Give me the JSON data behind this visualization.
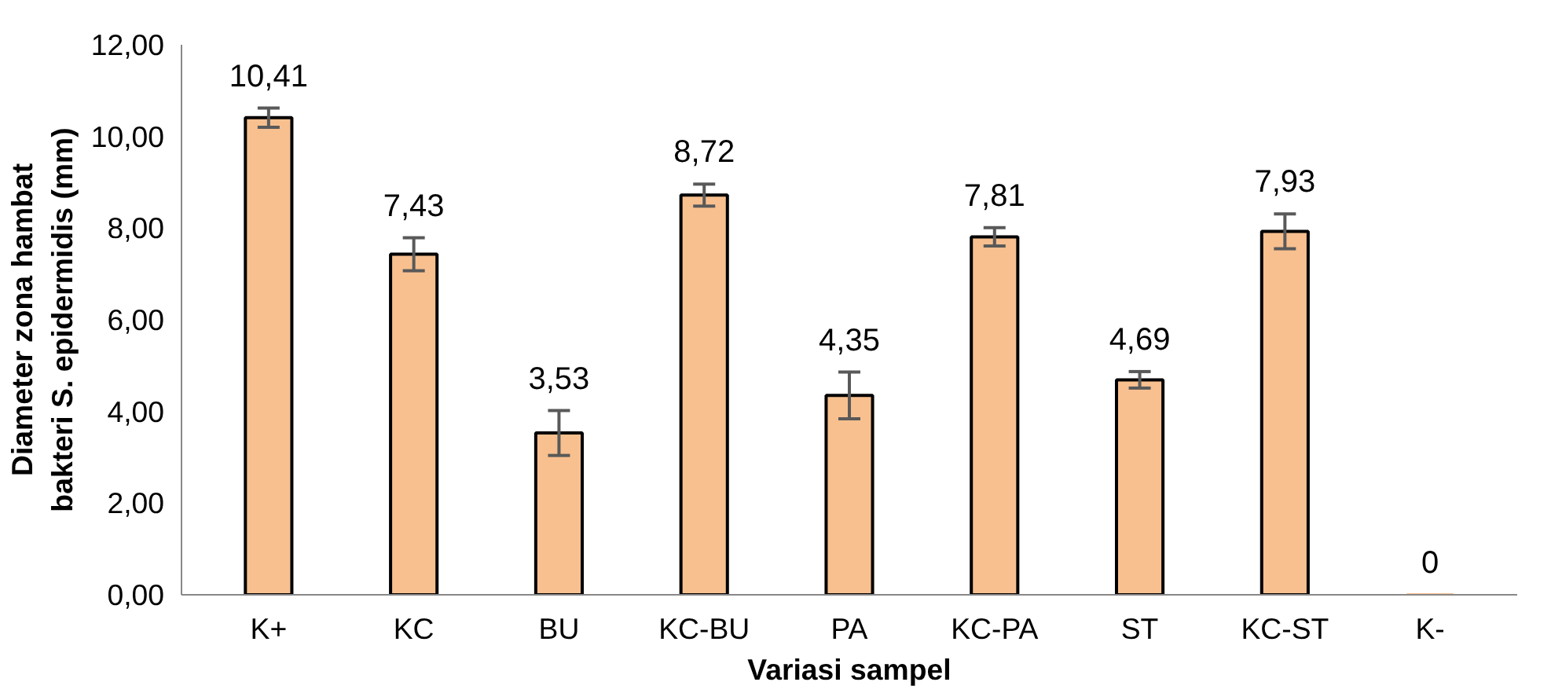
{
  "chart_data": {
    "type": "bar",
    "xlabel": "Variasi sampel",
    "ylabel": "Diameter zona hambat\nbakteri S. epidermidis (mm)",
    "categories": [
      "K+",
      "KC",
      "BU",
      "KC-BU",
      "PA",
      "KC-PA",
      "ST",
      "KC-ST",
      "K-"
    ],
    "values": [
      10.41,
      7.43,
      3.53,
      8.72,
      4.35,
      7.81,
      4.69,
      7.93,
      0
    ],
    "value_labels": [
      "10,41",
      "7,43",
      "3,53",
      "8,72",
      "4,35",
      "7,81",
      "4,69",
      "7,93",
      "0"
    ],
    "errors": [
      0.21,
      0.36,
      0.49,
      0.24,
      0.51,
      0.2,
      0.18,
      0.38,
      null
    ],
    "color": "#f8c08f",
    "ylim": [
      0,
      12
    ],
    "yticks": [
      {
        "value": 0,
        "label": "0,00"
      },
      {
        "value": 2,
        "label": "2,00"
      },
      {
        "value": 4,
        "label": "4,00"
      },
      {
        "value": 6,
        "label": "6,00"
      },
      {
        "value": 8,
        "label": "8,00"
      },
      {
        "value": 10,
        "label": "10,00"
      },
      {
        "value": 12,
        "label": "12,00"
      }
    ],
    "grid": false
  }
}
